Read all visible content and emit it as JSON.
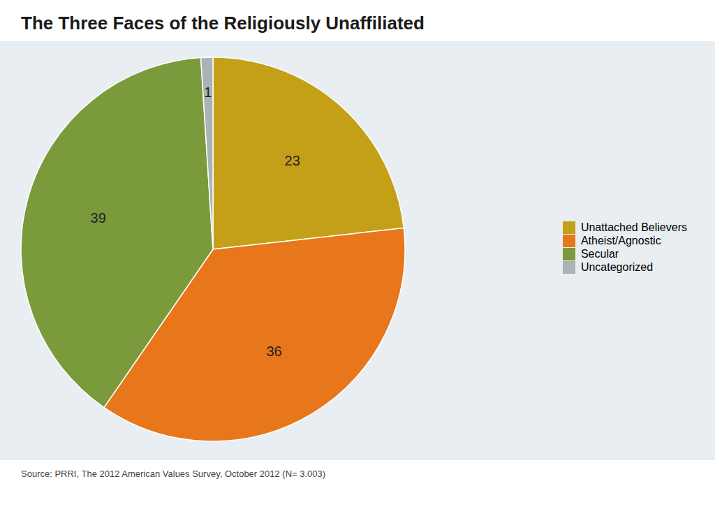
{
  "chart_data": {
    "type": "pie",
    "title": "The Three Faces of the Religiously Unaffiliated",
    "caption": "Source: PRRI, The 2012 American Values Survey, October 2012 (N= 3.003)",
    "categories": [
      "Unattached Believers",
      "Atheist/Agnostic",
      "Secular",
      "Uncategorized"
    ],
    "values": [
      23,
      36,
      39,
      1
    ],
    "colors": [
      "#c4a018",
      "#e8761a",
      "#7b9a3c",
      "#aab4b4"
    ],
    "data_labels": true,
    "legend": "right"
  }
}
